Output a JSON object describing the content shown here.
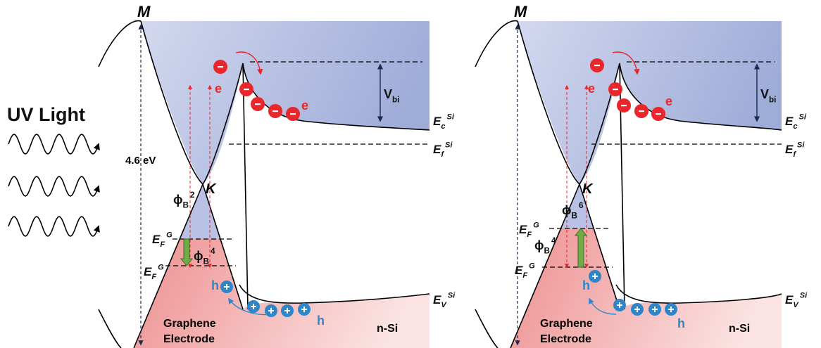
{
  "uv_light": "UV Light",
  "panels": [
    {
      "valley": "M",
      "energy": "4.6 eV",
      "dirac": "K",
      "electron_labels": [
        "e",
        "e"
      ],
      "vbi": {
        "base": "V",
        "sub": "bi"
      },
      "ec": {
        "base": "E",
        "sub": "c",
        "sup": "Si"
      },
      "ef": {
        "base": "E",
        "sub": "f",
        "sup": "Si"
      },
      "ev": {
        "base": "E",
        "sub": "V",
        "sup": "Si"
      },
      "phi_upper": {
        "base": "ϕ",
        "sub": "B",
        "sup": "2"
      },
      "phi_lower": {
        "base": "ϕ",
        "sub": "B",
        "sup": "4"
      },
      "efg_upper": {
        "base": "E",
        "sub": "F",
        "sup": "G"
      },
      "efg_lower": {
        "base": "E",
        "sub": "F",
        "sup": "G"
      },
      "hole_labels": [
        "h",
        "h"
      ],
      "electrode": [
        "Graphene",
        "Electrode"
      ],
      "substrate": "n-Si"
    },
    {
      "valley": "M",
      "dirac": "K",
      "electron_labels": [
        "e",
        "e"
      ],
      "vbi": {
        "base": "V",
        "sub": "bi"
      },
      "ec": {
        "base": "E",
        "sub": "c",
        "sup": "Si"
      },
      "ef": {
        "base": "E",
        "sub": "f",
        "sup": "Si"
      },
      "ev": {
        "base": "E",
        "sub": "V",
        "sup": "Si"
      },
      "phi_upper": {
        "base": "ϕ",
        "sub": "B",
        "sup": "6"
      },
      "phi_lower": {
        "base": "ϕ",
        "sub": "B",
        "sup": "4"
      },
      "efg_upper": {
        "base": "E",
        "sub": "F",
        "sup": "G"
      },
      "efg_lower": {
        "base": "E",
        "sub": "F",
        "sup": "G"
      },
      "hole_labels": [
        "h",
        "h"
      ],
      "electrode": [
        "Graphene",
        "Electrode"
      ],
      "substrate": "n-Si"
    }
  ]
}
